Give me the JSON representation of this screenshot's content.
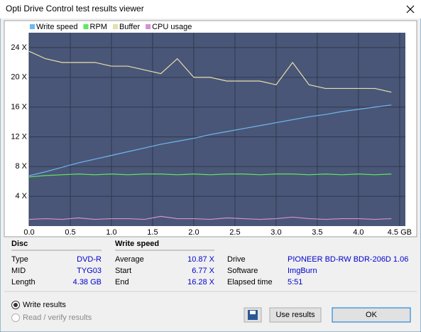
{
  "window": {
    "title": "Opti Drive Control test results viewer"
  },
  "chart_data": {
    "type": "line",
    "x": [
      0,
      0.2,
      0.4,
      0.6,
      0.8,
      1.0,
      1.2,
      1.4,
      1.6,
      1.8,
      2.0,
      2.2,
      2.4,
      2.6,
      2.8,
      3.0,
      3.2,
      3.4,
      3.6,
      3.8,
      4.0,
      4.2,
      4.4
    ],
    "series": [
      {
        "name": "Write speed",
        "color": "#6cb8f2",
        "values": [
          6.77,
          7.3,
          7.9,
          8.5,
          9.0,
          9.5,
          10.0,
          10.5,
          11.0,
          11.4,
          11.8,
          12.3,
          12.7,
          13.1,
          13.5,
          13.9,
          14.3,
          14.7,
          15.0,
          15.4,
          15.7,
          16.0,
          16.28
        ]
      },
      {
        "name": "RPM",
        "color": "#5ee85e",
        "values": [
          6.6,
          6.8,
          6.9,
          7.0,
          6.9,
          7.0,
          6.9,
          7.0,
          7.0,
          6.9,
          7.0,
          6.9,
          7.0,
          7.0,
          6.9,
          7.0,
          7.0,
          6.9,
          7.0,
          6.9,
          7.0,
          6.9,
          7.0
        ]
      },
      {
        "name": "Buffer",
        "color": "#e6dfae",
        "values": [
          23.5,
          22.5,
          22.0,
          22.0,
          22.0,
          21.5,
          21.5,
          21.0,
          20.5,
          22.5,
          20.0,
          20.0,
          19.5,
          19.5,
          19.5,
          19.0,
          22.0,
          19.0,
          18.5,
          18.5,
          18.5,
          18.5,
          18.0
        ]
      },
      {
        "name": "CPU usage",
        "color": "#d690d6",
        "values": [
          0.9,
          1.0,
          0.9,
          1.1,
          0.9,
          1.0,
          1.0,
          0.9,
          1.3,
          1.0,
          1.0,
          0.9,
          1.1,
          1.0,
          0.9,
          1.0,
          1.2,
          1.0,
          0.9,
          1.0,
          1.0,
          0.9,
          1.0
        ]
      }
    ],
    "xlim": [
      0,
      4.57
    ],
    "ylim": [
      0,
      26
    ],
    "xticks": [
      {
        "value": 0,
        "label": "0.0"
      },
      0.5,
      {
        "value": 1,
        "label": "1.0"
      },
      1.5,
      {
        "value": 2,
        "label": "2.0"
      },
      2.5,
      {
        "value": 3,
        "label": "3.0"
      },
      3.5,
      {
        "value": 4,
        "label": "4.0"
      },
      {
        "value": 4.5,
        "label": "4.5 GB"
      }
    ],
    "yticks": [
      {
        "value": 4,
        "label": "4 X"
      },
      {
        "value": 8,
        "label": "8 X"
      },
      {
        "value": 12,
        "label": "12 X"
      },
      {
        "value": 16,
        "label": "16 X"
      },
      {
        "value": 20,
        "label": "20 X"
      },
      {
        "value": 24,
        "label": "24 X"
      }
    ],
    "grid": true
  },
  "disc": {
    "header": "Disc",
    "rows": [
      [
        "Type",
        "DVD-R"
      ],
      [
        "MID",
        "TYG03"
      ],
      [
        "Length",
        "4.38 GB"
      ]
    ]
  },
  "write_speed": {
    "header": "Write speed",
    "rows": [
      [
        "Average",
        "10.87 X"
      ],
      [
        "Start",
        "6.77 X"
      ],
      [
        "End",
        "16.28 X"
      ]
    ]
  },
  "drive_info": {
    "rows": [
      [
        "Drive",
        "PIONEER  BD-RW   BDR-206D 1.06"
      ],
      [
        "Software",
        "ImgBurn"
      ],
      [
        "Elapsed time",
        "5:51"
      ]
    ]
  },
  "options": [
    "Write results",
    "Read / verify results"
  ],
  "buttons": [
    "Use results",
    "OK"
  ]
}
